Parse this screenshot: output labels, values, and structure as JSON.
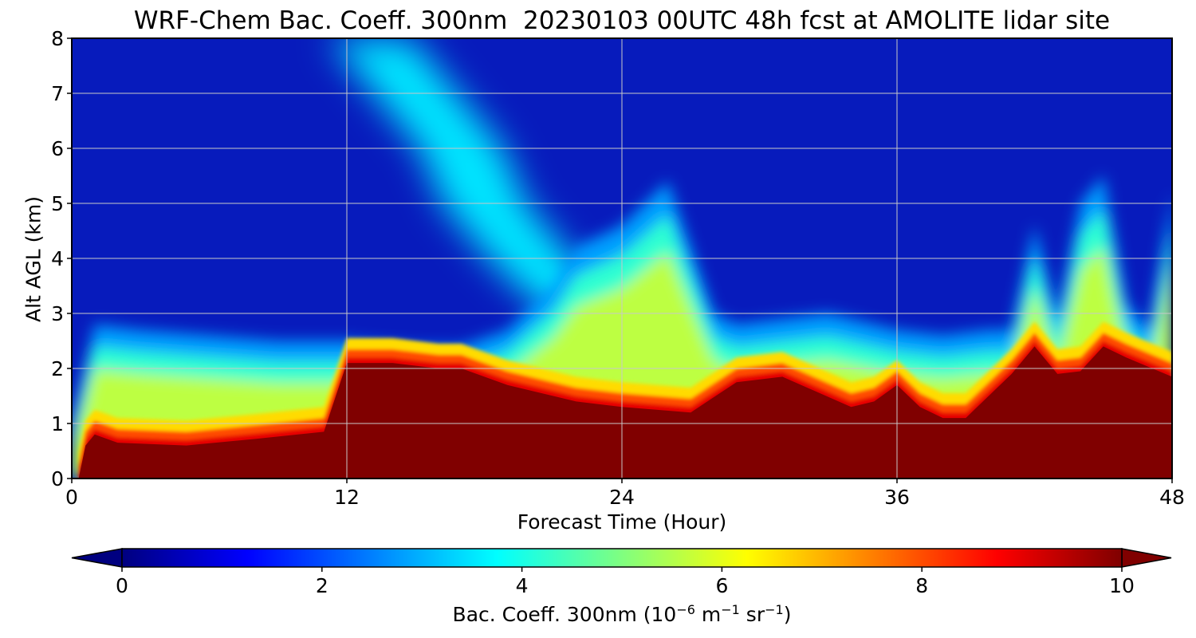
{
  "chart_data": {
    "type": "heatmap",
    "title": "WRF-Chem Bac. Coeff. 300nm  20230103 00UTC 48h fcst at AMOLITE lidar site",
    "xlabel": "Forecast Time (Hour)",
    "ylabel": "Alt AGL (km)",
    "xlim": [
      0,
      48
    ],
    "ylim": [
      0,
      8
    ],
    "xticks": [
      0,
      12,
      24,
      36,
      48
    ],
    "yticks": [
      0,
      1,
      2,
      3,
      4,
      5,
      6,
      7,
      8
    ],
    "grid": true,
    "colormap": "jet",
    "colorbar": {
      "label": "Bac. Coeff. 300nm",
      "units_base": "10",
      "units_exp": "−6",
      "units_m": " m",
      "units_m_exp": "−1",
      "units_sr": " sr",
      "units_sr_exp": "−1",
      "range": [
        0,
        10
      ],
      "ticks": [
        0,
        2,
        4,
        6,
        8,
        10
      ],
      "extend": "both"
    },
    "boundary_layer_top_km": {
      "x": [
        0.3,
        0.6,
        1,
        2,
        5,
        8,
        11,
        12,
        14,
        16,
        17,
        19,
        22,
        24,
        27,
        29,
        31,
        34,
        35,
        36,
        37,
        38,
        39,
        41,
        42,
        43,
        44,
        45,
        46,
        48
      ],
      "y": [
        0.0,
        0.6,
        0.8,
        0.65,
        0.6,
        0.72,
        0.85,
        2.1,
        2.1,
        2.0,
        2.0,
        1.7,
        1.4,
        1.3,
        1.2,
        1.75,
        1.85,
        1.3,
        1.4,
        1.7,
        1.3,
        1.1,
        1.1,
        1.9,
        2.4,
        1.9,
        1.95,
        2.4,
        2.2,
        1.85
      ]
    },
    "aerosol_layer_top_km": {
      "x": [
        0,
        1,
        3,
        6,
        9,
        12,
        15,
        17,
        19,
        21,
        22,
        24,
        25,
        26,
        27,
        28,
        29,
        31,
        33,
        35,
        36,
        38,
        40,
        41,
        42,
        43,
        44,
        45,
        46,
        47,
        48
      ],
      "y": [
        0.8,
        2.6,
        2.5,
        2.4,
        2.3,
        2.3,
        2.2,
        2.2,
        2.5,
        3.3,
        4.0,
        4.4,
        4.8,
        5.2,
        4.0,
        2.8,
        2.6,
        2.7,
        2.8,
        2.6,
        2.5,
        2.4,
        2.5,
        2.5,
        4.4,
        2.7,
        4.8,
        5.3,
        3.0,
        2.5,
        5.0
      ]
    },
    "upper_plume": {
      "x": [
        13,
        15,
        17,
        18,
        20,
        22,
        24
      ],
      "y": [
        8.0,
        7.0,
        6.0,
        5.0,
        4.0,
        3.2,
        2.8
      ],
      "value": 3.5
    }
  }
}
